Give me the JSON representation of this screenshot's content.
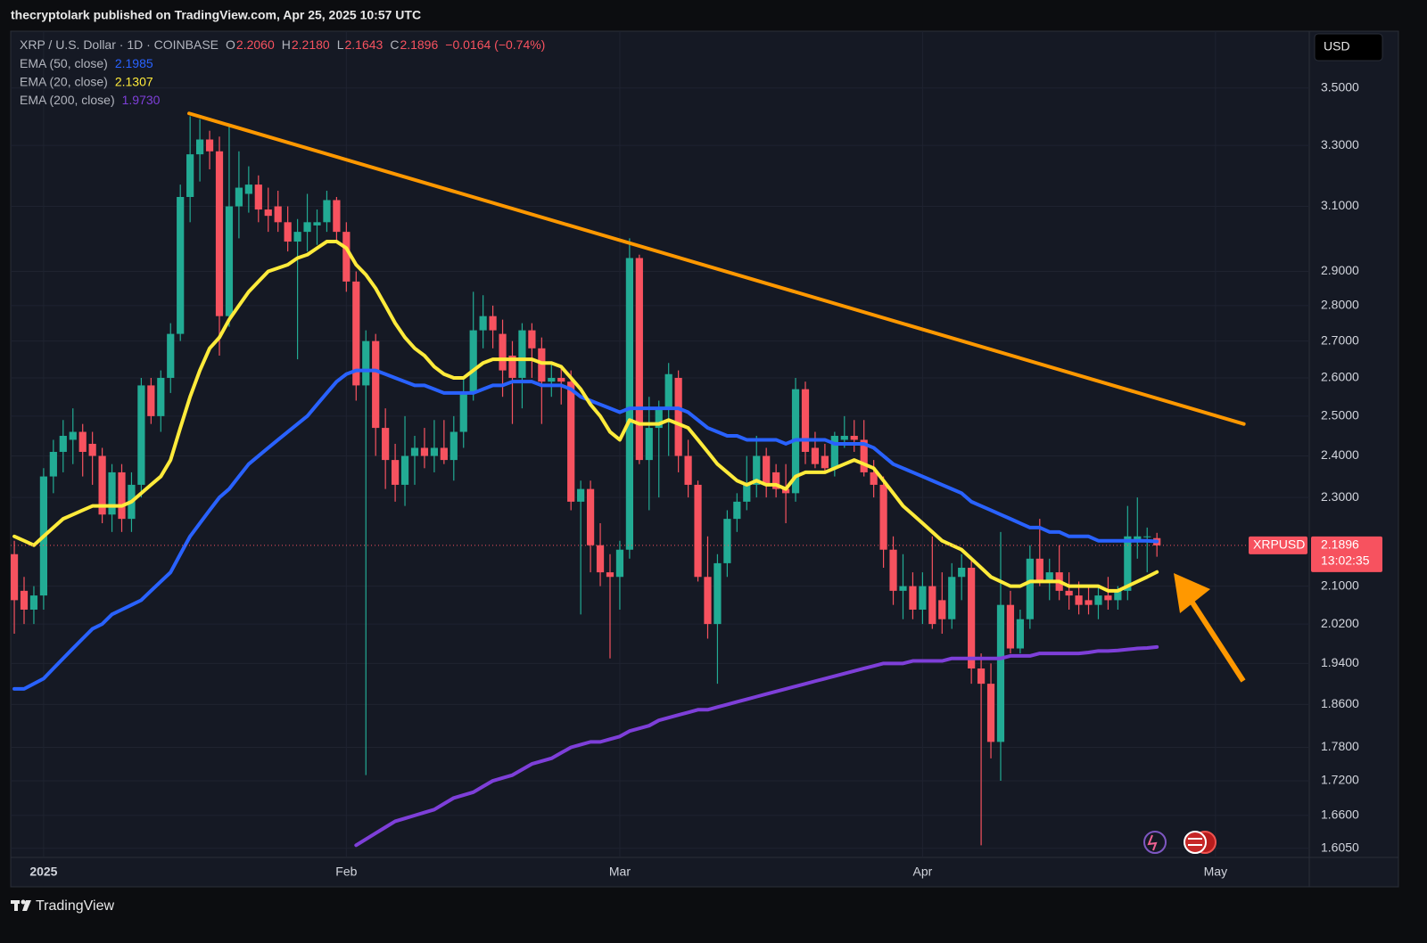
{
  "header": {
    "publisher": "thecryptolark published on TradingView.com, Apr 25, 2025 10:57 UTC"
  },
  "chart_data": {
    "type": "candlestick",
    "symbol": "XRP / U.S. Dollar · 1D · COINBASE",
    "ohlc": [
      {
        "key": "O",
        "label": "2.2060"
      },
      {
        "key": "H",
        "label": "2.2180"
      },
      {
        "key": "L",
        "label": "2.1643"
      },
      {
        "key": "C",
        "label": "2.1896"
      }
    ],
    "change": "−0.0164 (−0.74%)",
    "currency": "USD",
    "log_scale": true,
    "grid": true,
    "up_color": "#22ab94",
    "down_color": "#f7525f",
    "xlim": [
      -0.37,
      132.6
    ],
    "xticks": [
      {
        "value": 3,
        "label": "2025"
      },
      {
        "value": 34,
        "label": "Feb"
      },
      {
        "value": 62,
        "label": "Mar"
      },
      {
        "value": 93,
        "label": "Apr"
      },
      {
        "value": 123,
        "label": "May"
      }
    ],
    "ylim": [
      1.59,
      3.71
    ],
    "yticks": [
      {
        "value": 3.5,
        "label": "3.5000"
      },
      {
        "value": 3.3,
        "label": "3.3000"
      },
      {
        "value": 3.1,
        "label": "3.1000"
      },
      {
        "value": 2.9,
        "label": "2.9000"
      },
      {
        "value": 2.8,
        "label": "2.8000"
      },
      {
        "value": 2.7,
        "label": "2.7000"
      },
      {
        "value": 2.6,
        "label": "2.6000"
      },
      {
        "value": 2.5,
        "label": "2.5000"
      },
      {
        "value": 2.4,
        "label": "2.4000"
      },
      {
        "value": 2.3,
        "label": "2.3000"
      },
      {
        "value": 2.1,
        "label": "2.1000"
      },
      {
        "value": 2.02,
        "label": "2.0200"
      },
      {
        "value": 1.94,
        "label": "1.9400"
      },
      {
        "value": 1.86,
        "label": "1.8600"
      },
      {
        "value": 1.78,
        "label": "1.7800"
      },
      {
        "value": 1.72,
        "label": "1.7200"
      },
      {
        "value": 1.66,
        "label": "1.6600"
      },
      {
        "value": 1.605,
        "label": "1.6050"
      }
    ],
    "open": [
      2.17,
      2.09,
      2.05,
      2.08,
      2.35,
      2.41,
      2.44,
      2.46,
      2.43,
      2.4,
      2.26,
      2.36,
      2.25,
      2.33,
      2.58,
      2.5,
      2.6,
      2.72,
      3.13,
      3.27,
      3.32,
      3.28,
      2.77,
      3.1,
      3.14,
      3.17,
      3.09,
      3.1,
      3.05,
      2.99,
      3.02,
      3.04,
      3.05,
      3.12,
      3.02,
      2.87,
      2.58,
      2.7,
      2.47,
      2.39,
      2.33,
      2.4,
      2.42,
      2.4,
      2.42,
      2.39,
      2.46,
      2.56,
      2.73,
      2.77,
      2.72,
      2.66,
      2.6,
      2.73,
      2.68,
      2.59,
      2.6,
      2.59,
      2.29,
      2.32,
      2.19,
      2.13,
      2.12,
      2.18,
      2.94,
      2.39,
      2.47,
      2.52,
      2.6,
      2.4,
      2.33,
      2.12,
      2.02,
      2.15,
      2.25,
      2.29,
      2.33,
      2.4,
      2.36,
      2.32,
      2.31,
      2.57,
      2.42,
      2.4,
      2.37,
      2.44,
      2.45,
      2.44,
      2.36,
      2.33,
      2.18,
      2.09,
      2.1,
      2.05,
      2.1,
      2.07,
      2.03,
      2.12,
      2.14,
      1.93,
      1.9,
      1.79,
      2.06,
      1.97,
      2.03,
      2.16,
      2.11,
      2.13,
      2.09,
      2.08,
      2.07,
      2.06,
      2.08,
      2.07,
      2.09,
      2.2,
      2.21,
      2.206
    ],
    "high": [
      2.2,
      2.12,
      2.1,
      2.37,
      2.44,
      2.49,
      2.52,
      2.48,
      2.46,
      2.42,
      2.38,
      2.38,
      2.36,
      2.6,
      2.6,
      2.62,
      2.75,
      3.17,
      3.4,
      3.39,
      3.35,
      3.33,
      3.37,
      3.28,
      3.23,
      3.2,
      3.16,
      3.15,
      3.1,
      3.06,
      3.14,
      3.09,
      3.15,
      3.13,
      3.05,
      2.9,
      2.73,
      2.72,
      2.52,
      2.43,
      2.5,
      2.45,
      2.47,
      2.49,
      2.49,
      2.5,
      2.6,
      2.84,
      2.83,
      2.8,
      2.76,
      2.7,
      2.75,
      2.75,
      2.71,
      2.64,
      2.63,
      2.62,
      2.34,
      2.34,
      2.24,
      2.17,
      2.2,
      3.0,
      2.95,
      2.55,
      2.54,
      2.64,
      2.62,
      2.44,
      2.34,
      2.21,
      2.17,
      2.27,
      2.31,
      2.4,
      2.45,
      2.42,
      2.38,
      2.38,
      2.6,
      2.59,
      2.46,
      2.43,
      2.46,
      2.5,
      2.49,
      2.49,
      2.39,
      2.35,
      2.21,
      2.17,
      2.13,
      2.13,
      2.21,
      2.13,
      2.15,
      2.17,
      2.16,
      1.96,
      1.94,
      2.22,
      2.09,
      2.05,
      2.19,
      2.25,
      2.16,
      2.19,
      2.13,
      2.11,
      2.1,
      2.1,
      2.12,
      2.1,
      2.28,
      2.3,
      2.23,
      2.218
    ],
    "low": [
      2.0,
      2.02,
      2.02,
      2.05,
      2.31,
      2.36,
      2.38,
      2.35,
      2.33,
      2.24,
      2.22,
      2.22,
      2.22,
      2.3,
      2.48,
      2.46,
      2.56,
      2.7,
      3.05,
      3.18,
      3.22,
      2.66,
      2.74,
      3.0,
      3.08,
      3.05,
      3.02,
      3.02,
      2.96,
      2.65,
      2.96,
      2.98,
      3.02,
      2.99,
      2.84,
      2.54,
      1.73,
      2.4,
      2.32,
      2.29,
      2.28,
      2.33,
      2.37,
      2.36,
      2.38,
      2.34,
      2.42,
      2.54,
      2.68,
      2.68,
      2.55,
      2.48,
      2.52,
      2.6,
      2.48,
      2.55,
      2.53,
      2.27,
      2.04,
      2.13,
      2.1,
      1.95,
      2.05,
      2.16,
      2.38,
      2.27,
      2.3,
      2.4,
      2.36,
      2.3,
      2.11,
      1.99,
      1.9,
      2.12,
      2.22,
      2.27,
      2.3,
      2.3,
      2.3,
      2.24,
      2.29,
      2.38,
      2.37,
      2.36,
      2.35,
      2.42,
      2.41,
      2.35,
      2.3,
      2.14,
      2.06,
      2.03,
      2.03,
      2.02,
      2.01,
      2.0,
      2.01,
      2.07,
      1.9,
      1.61,
      1.76,
      1.72,
      1.96,
      1.96,
      2.01,
      2.1,
      2.07,
      2.07,
      2.05,
      2.04,
      2.04,
      2.03,
      2.05,
      2.05,
      2.07,
      2.16,
      2.13,
      2.1643
    ],
    "close": [
      2.07,
      2.05,
      2.08,
      2.35,
      2.41,
      2.45,
      2.46,
      2.41,
      2.4,
      2.26,
      2.36,
      2.25,
      2.33,
      2.58,
      2.5,
      2.6,
      2.72,
      3.13,
      3.27,
      3.32,
      3.28,
      2.77,
      3.1,
      3.16,
      3.17,
      3.09,
      3.07,
      3.05,
      2.99,
      3.02,
      3.05,
      3.05,
      3.12,
      3.02,
      2.87,
      2.58,
      2.7,
      2.47,
      2.39,
      2.33,
      2.4,
      2.42,
      2.4,
      2.42,
      2.39,
      2.46,
      2.56,
      2.73,
      2.77,
      2.73,
      2.62,
      2.6,
      2.73,
      2.68,
      2.59,
      2.6,
      2.59,
      2.29,
      2.32,
      2.19,
      2.13,
      2.12,
      2.18,
      2.94,
      2.39,
      2.47,
      2.52,
      2.61,
      2.4,
      2.33,
      2.12,
      2.02,
      2.15,
      2.25,
      2.29,
      2.33,
      2.4,
      2.33,
      2.32,
      2.31,
      2.57,
      2.41,
      2.38,
      2.37,
      2.45,
      2.45,
      2.44,
      2.36,
      2.33,
      2.18,
      2.09,
      2.1,
      2.05,
      2.1,
      2.02,
      2.03,
      2.12,
      2.14,
      1.93,
      1.9,
      1.79,
      2.06,
      1.97,
      2.03,
      2.16,
      2.11,
      2.13,
      2.09,
      2.08,
      2.06,
      2.06,
      2.08,
      2.07,
      2.09,
      2.21,
      2.21,
      2.21,
      2.1896
    ],
    "series": [
      {
        "name": "EMA (50, close)",
        "color": "#2962ff",
        "legend_value": "2.1985",
        "values": [
          1.89,
          1.89,
          1.9,
          1.91,
          1.93,
          1.95,
          1.97,
          1.99,
          2.01,
          2.02,
          2.04,
          2.05,
          2.06,
          2.07,
          2.09,
          2.11,
          2.13,
          2.17,
          2.21,
          2.24,
          2.27,
          2.3,
          2.32,
          2.35,
          2.38,
          2.4,
          2.42,
          2.44,
          2.46,
          2.48,
          2.5,
          2.53,
          2.56,
          2.59,
          2.61,
          2.62,
          2.62,
          2.62,
          2.61,
          2.6,
          2.59,
          2.58,
          2.58,
          2.57,
          2.56,
          2.56,
          2.56,
          2.56,
          2.57,
          2.58,
          2.58,
          2.59,
          2.59,
          2.59,
          2.58,
          2.58,
          2.58,
          2.57,
          2.55,
          2.54,
          2.53,
          2.52,
          2.51,
          2.52,
          2.52,
          2.52,
          2.52,
          2.52,
          2.52,
          2.51,
          2.49,
          2.47,
          2.46,
          2.45,
          2.45,
          2.44,
          2.44,
          2.44,
          2.44,
          2.43,
          2.44,
          2.44,
          2.44,
          2.44,
          2.43,
          2.43,
          2.43,
          2.43,
          2.42,
          2.4,
          2.38,
          2.37,
          2.36,
          2.35,
          2.34,
          2.33,
          2.32,
          2.31,
          2.29,
          2.28,
          2.27,
          2.26,
          2.25,
          2.24,
          2.23,
          2.23,
          2.22,
          2.22,
          2.21,
          2.21,
          2.21,
          2.2,
          2.2,
          2.2,
          2.2,
          2.2,
          2.2,
          2.1985
        ]
      },
      {
        "name": "EMA (20, close)",
        "color": "#ffeb3b",
        "legend_value": "2.1307",
        "values": [
          2.21,
          2.2,
          2.19,
          2.21,
          2.23,
          2.25,
          2.26,
          2.27,
          2.28,
          2.28,
          2.28,
          2.28,
          2.29,
          2.31,
          2.33,
          2.35,
          2.39,
          2.47,
          2.55,
          2.62,
          2.68,
          2.71,
          2.76,
          2.8,
          2.84,
          2.87,
          2.9,
          2.91,
          2.92,
          2.94,
          2.95,
          2.97,
          2.99,
          2.99,
          2.97,
          2.92,
          2.89,
          2.85,
          2.8,
          2.75,
          2.71,
          2.68,
          2.66,
          2.63,
          2.61,
          2.6,
          2.6,
          2.62,
          2.64,
          2.65,
          2.65,
          2.65,
          2.65,
          2.65,
          2.64,
          2.64,
          2.63,
          2.6,
          2.57,
          2.53,
          2.5,
          2.46,
          2.44,
          2.49,
          2.48,
          2.48,
          2.48,
          2.49,
          2.48,
          2.47,
          2.44,
          2.41,
          2.38,
          2.36,
          2.34,
          2.33,
          2.34,
          2.33,
          2.33,
          2.32,
          2.35,
          2.36,
          2.36,
          2.36,
          2.37,
          2.38,
          2.39,
          2.38,
          2.37,
          2.34,
          2.31,
          2.28,
          2.26,
          2.24,
          2.22,
          2.2,
          2.19,
          2.18,
          2.16,
          2.14,
          2.12,
          2.11,
          2.1,
          2.1,
          2.11,
          2.11,
          2.11,
          2.11,
          2.1,
          2.1,
          2.1,
          2.1,
          2.09,
          2.09,
          2.1,
          2.11,
          2.12,
          2.1307
        ]
      },
      {
        "name": "EMA (200, close)",
        "color": "#7e3fd9",
        "legend_value": "1.9730",
        "values": [
          null,
          null,
          null,
          null,
          null,
          null,
          null,
          null,
          null,
          null,
          null,
          null,
          null,
          null,
          null,
          null,
          null,
          null,
          null,
          null,
          null,
          null,
          null,
          null,
          null,
          null,
          null,
          null,
          null,
          null,
          null,
          null,
          null,
          null,
          null,
          1.61,
          1.62,
          1.63,
          1.64,
          1.65,
          1.655,
          1.66,
          1.665,
          1.67,
          1.68,
          1.69,
          1.695,
          1.7,
          1.71,
          1.72,
          1.725,
          1.73,
          1.74,
          1.75,
          1.755,
          1.76,
          1.77,
          1.78,
          1.785,
          1.79,
          1.79,
          1.795,
          1.8,
          1.81,
          1.815,
          1.82,
          1.83,
          1.835,
          1.84,
          1.845,
          1.85,
          1.85,
          1.855,
          1.86,
          1.865,
          1.87,
          1.875,
          1.88,
          1.885,
          1.89,
          1.895,
          1.9,
          1.905,
          1.91,
          1.915,
          1.92,
          1.925,
          1.93,
          1.935,
          1.94,
          1.94,
          1.94,
          1.945,
          1.945,
          1.945,
          1.945,
          1.95,
          1.95,
          1.95,
          1.95,
          1.95,
          1.95,
          1.955,
          1.955,
          1.955,
          1.96,
          1.96,
          1.96,
          1.96,
          1.96,
          1.962,
          1.965,
          1.965,
          1.966,
          1.968,
          1.97,
          1.971,
          1.973
        ]
      }
    ],
    "trendline": {
      "color": "#ff9800",
      "x": [
        17.9,
        125.9
      ],
      "values": [
        3.41,
        2.48
      ]
    },
    "last_price": {
      "symbol": "XRPUSD",
      "label": "2.1896",
      "countdown": "13:02:35"
    }
  },
  "footer": {
    "brand": "TradingView"
  }
}
